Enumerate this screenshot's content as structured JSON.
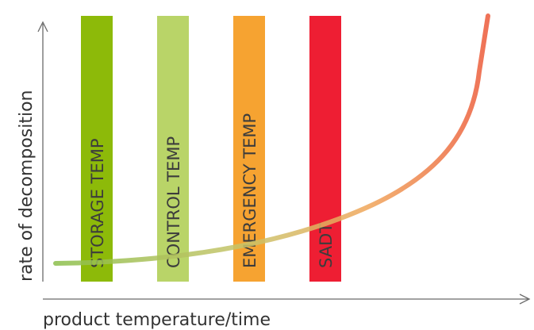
{
  "axes": {
    "y_label": "rate of decomposition",
    "x_label": "product temperature/time"
  },
  "bands": [
    {
      "label": "STORAGE TEMP",
      "color": "#8dba09"
    },
    {
      "label": "CONTROL TEMP",
      "color": "#b9d468"
    },
    {
      "label": "EMERGENCY TEMP",
      "color": "#f6a331"
    },
    {
      "label": "SADT",
      "color": "#ee1e33"
    }
  ],
  "curve": {
    "description_colors": [
      "#8cbf4c",
      "#c9c46a",
      "#f0a65a",
      "#ec5a3a"
    ]
  }
}
